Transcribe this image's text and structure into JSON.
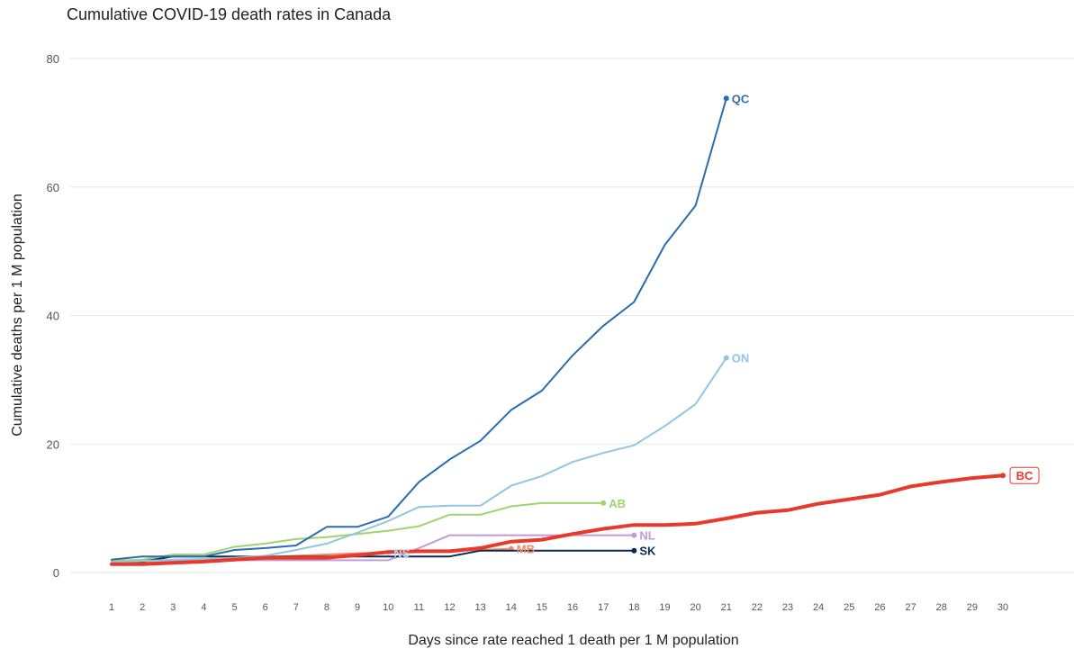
{
  "chart_data": {
    "type": "line",
    "title": "Cumulative COVID-19 death rates in Canada",
    "xlabel": "Days since rate reached 1 death per 1 M population",
    "ylabel": "Cumulative deaths per 1 M population",
    "xlim": [
      1,
      30
    ],
    "ylim": [
      0,
      80
    ],
    "x_ticks": [
      1,
      2,
      3,
      4,
      5,
      6,
      7,
      8,
      9,
      10,
      11,
      12,
      13,
      14,
      15,
      16,
      17,
      18,
      19,
      20,
      21,
      22,
      23,
      24,
      25,
      26,
      27,
      28,
      29,
      30
    ],
    "y_ticks": [
      0,
      20,
      40,
      60,
      80
    ],
    "grid": "horizontal",
    "legend": "direct labels at line ends",
    "series": [
      {
        "name": "NS",
        "color": "#b7d2e6",
        "width": 2,
        "x": [
          1,
          2,
          3,
          4,
          5,
          6,
          7,
          8,
          9,
          10
        ],
        "y": [
          1.5,
          1.6,
          1.8,
          2.0,
          2.1,
          2.3,
          2.5,
          2.7,
          2.9,
          3.1
        ]
      },
      {
        "name": "MB",
        "color": "#f08a6b",
        "width": 2,
        "x": [
          1,
          2,
          3,
          4,
          5,
          6,
          7,
          8,
          9,
          10,
          11,
          12,
          13,
          14
        ],
        "y": [
          1.5,
          1.5,
          1.6,
          1.7,
          2.0,
          2.4,
          2.6,
          2.8,
          3.0,
          3.1,
          3.2,
          3.3,
          3.5,
          3.7
        ]
      },
      {
        "name": "NL",
        "color": "#c39bd3",
        "width": 2,
        "x": [
          1,
          2,
          3,
          4,
          5,
          6,
          7,
          8,
          9,
          10,
          11,
          12,
          13,
          14,
          15,
          16,
          17,
          18
        ],
        "y": [
          1.9,
          1.9,
          1.9,
          1.9,
          1.9,
          1.9,
          1.9,
          1.9,
          1.9,
          1.9,
          3.8,
          5.8,
          5.8,
          5.8,
          5.8,
          5.8,
          5.8,
          5.8
        ]
      },
      {
        "name": "SK",
        "color": "#0b2a55",
        "width": 2,
        "x": [
          1,
          2,
          3,
          4,
          5,
          6,
          7,
          8,
          9,
          10,
          11,
          12,
          13,
          14,
          15,
          16,
          17,
          18
        ],
        "y": [
          1.7,
          1.7,
          2.5,
          2.5,
          2.5,
          2.5,
          2.5,
          2.5,
          2.5,
          2.5,
          2.5,
          2.5,
          3.4,
          3.4,
          3.4,
          3.4,
          3.4,
          3.4
        ]
      },
      {
        "name": "AB",
        "color": "#9fd46e",
        "width": 2,
        "x": [
          1,
          2,
          3,
          4,
          5,
          6,
          7,
          8,
          9,
          10,
          11,
          12,
          13,
          14,
          15,
          16,
          17
        ],
        "y": [
          1.8,
          2.0,
          2.8,
          2.8,
          4.0,
          4.5,
          5.2,
          5.5,
          6.0,
          6.5,
          7.2,
          9.0,
          9.0,
          10.3,
          10.8,
          10.8,
          10.8
        ]
      },
      {
        "name": "ON",
        "color": "#92c5de",
        "width": 2,
        "x": [
          1,
          2,
          3,
          4,
          5,
          6,
          7,
          8,
          9,
          10,
          11,
          12,
          13,
          14,
          15,
          16,
          17,
          18,
          19,
          20,
          21
        ],
        "y": [
          1.6,
          1.8,
          2.0,
          2.1,
          2.3,
          2.6,
          3.5,
          4.5,
          6.2,
          8.0,
          10.2,
          10.4,
          10.4,
          13.5,
          15.0,
          17.2,
          18.6,
          19.8,
          22.8,
          26.2,
          33.4
        ]
      },
      {
        "name": "QC",
        "color": "#2b6cb0",
        "width": 2,
        "x": [
          1,
          2,
          3,
          4,
          5,
          6,
          7,
          8,
          9,
          10,
          11,
          12,
          13,
          14,
          15,
          16,
          17,
          18,
          19,
          20,
          21
        ],
        "y": [
          2.0,
          2.5,
          2.5,
          2.5,
          3.5,
          3.8,
          4.2,
          7.1,
          7.1,
          8.7,
          14.1,
          17.6,
          20.5,
          25.3,
          28.3,
          33.8,
          38.4,
          42.1,
          51.0,
          57.1,
          73.8
        ]
      },
      {
        "name": "BC",
        "color": "#e8392b",
        "width": 4,
        "x": [
          1,
          2,
          3,
          4,
          5,
          6,
          7,
          8,
          9,
          10,
          11,
          12,
          13,
          14,
          15,
          16,
          17,
          18,
          19,
          20,
          21,
          22,
          23,
          24,
          25,
          26,
          27,
          28,
          29,
          30
        ],
        "y": [
          1.3,
          1.3,
          1.5,
          1.7,
          2.0,
          2.3,
          2.3,
          2.3,
          2.7,
          3.2,
          3.3,
          3.3,
          3.8,
          4.8,
          5.1,
          6.0,
          6.8,
          7.4,
          7.4,
          7.6,
          8.4,
          9.3,
          9.7,
          10.7,
          11.4,
          12.1,
          13.4,
          14.1,
          14.7,
          15.1
        ]
      }
    ]
  }
}
